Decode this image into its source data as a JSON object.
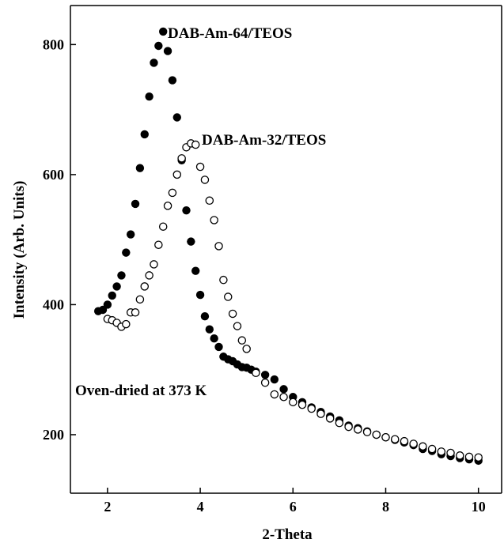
{
  "chart_data": {
    "type": "scatter",
    "xlabel": "2-Theta",
    "ylabel": "Intensity (Arb. Units)",
    "xlim": [
      1.2,
      10.5
    ],
    "ylim": [
      110,
      860
    ],
    "xticks": [
      2,
      4,
      6,
      8,
      10
    ],
    "yticks": [
      200,
      400,
      600,
      800
    ],
    "grid": false,
    "annotations": [
      "DAB-Am-64/TEOS",
      "DAB-Am-32/TEOS",
      "Oven-dried at 373 K"
    ],
    "series": [
      {
        "name": "DAB-Am-64/TEOS",
        "marker": "filled-circle",
        "x": [
          1.8,
          1.9,
          2.0,
          2.1,
          2.2,
          2.3,
          2.4,
          2.5,
          2.6,
          2.7,
          2.8,
          2.9,
          3.0,
          3.1,
          3.2,
          3.3,
          3.4,
          3.5,
          3.6,
          3.7,
          3.8,
          3.9,
          4.0,
          4.1,
          4.2,
          4.3,
          4.4,
          4.5,
          4.6,
          4.7,
          4.8,
          4.9,
          5.0,
          5.1,
          5.2,
          5.4,
          5.6,
          5.8,
          6.0,
          6.2,
          6.4,
          6.6,
          6.8,
          7.0,
          7.2,
          7.4,
          7.6,
          7.8,
          8.0,
          8.2,
          8.4,
          8.6,
          8.8,
          9.0,
          9.2,
          9.4,
          9.6,
          9.8,
          10.0
        ],
        "y": [
          390,
          392,
          400,
          414,
          428,
          445,
          480,
          508,
          555,
          610,
          662,
          720,
          772,
          798,
          820,
          790,
          745,
          688,
          622,
          545,
          497,
          452,
          415,
          382,
          362,
          348,
          335,
          320,
          316,
          313,
          308,
          304,
          303,
          300,
          297,
          292,
          285,
          270,
          258,
          250,
          242,
          235,
          228,
          222,
          214,
          210,
          205,
          200,
          196,
          192,
          188,
          184,
          178,
          175,
          170,
          167,
          164,
          162,
          160
        ]
      },
      {
        "name": "DAB-Am-32/TEOS",
        "marker": "open-circle",
        "x": [
          2.0,
          2.1,
          2.2,
          2.3,
          2.4,
          2.5,
          2.6,
          2.7,
          2.8,
          2.9,
          3.0,
          3.1,
          3.2,
          3.3,
          3.4,
          3.5,
          3.6,
          3.7,
          3.8,
          3.9,
          4.0,
          4.1,
          4.2,
          4.3,
          4.4,
          4.5,
          4.6,
          4.7,
          4.8,
          4.9,
          5.0,
          5.2,
          5.4,
          5.6,
          5.8,
          6.0,
          6.2,
          6.4,
          6.6,
          6.8,
          7.0,
          7.2,
          7.4,
          7.6,
          7.8,
          8.0,
          8.2,
          8.4,
          8.6,
          8.8,
          9.0,
          9.2,
          9.4,
          9.6,
          9.8,
          10.0
        ],
        "y": [
          378,
          376,
          372,
          366,
          370,
          388,
          388,
          408,
          428,
          445,
          462,
          492,
          520,
          552,
          572,
          600,
          625,
          642,
          648,
          646,
          612,
          592,
          560,
          530,
          490,
          438,
          412,
          386,
          367,
          345,
          332,
          295,
          280,
          262,
          258,
          250,
          246,
          240,
          232,
          225,
          218,
          212,
          208,
          204,
          200,
          196,
          193,
          190,
          186,
          182,
          178,
          174,
          172,
          168,
          166,
          165
        ]
      }
    ]
  }
}
